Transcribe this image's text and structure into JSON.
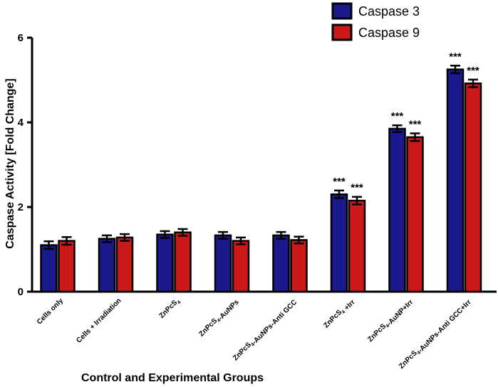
{
  "chart_data": {
    "type": "bar",
    "title": "",
    "xlabel": "Control and Experimental Groups",
    "ylabel": "Caspase Activity [Fold Change]",
    "ylim": [
      0,
      6
    ],
    "yticks": [
      "0",
      "2",
      "4",
      "6"
    ],
    "categories": [
      {
        "parts": [
          {
            "t": "Cells only",
            "sub": false
          }
        ]
      },
      {
        "parts": [
          {
            "t": "Cells + Irradiation",
            "sub": false
          }
        ]
      },
      {
        "parts": [
          {
            "t": "ZnPcS",
            "sub": false
          },
          {
            "t": "4",
            "sub": true
          }
        ]
      },
      {
        "parts": [
          {
            "t": "ZnPcS",
            "sub": false
          },
          {
            "t": "4",
            "sub": true
          },
          {
            "t": "-AuNPs",
            "sub": false
          }
        ]
      },
      {
        "parts": [
          {
            "t": "ZnPcS",
            "sub": false
          },
          {
            "t": "4",
            "sub": true
          },
          {
            "t": "-AuNPs-Anti GCC",
            "sub": false
          }
        ]
      },
      {
        "parts": [
          {
            "t": "ZnPcS",
            "sub": false
          },
          {
            "t": "4",
            "sub": true
          },
          {
            "t": " +Irr",
            "sub": false
          }
        ]
      },
      {
        "parts": [
          {
            "t": "ZnPcS",
            "sub": false
          },
          {
            "t": "4",
            "sub": true
          },
          {
            "t": "-AuNP+Irr",
            "sub": false
          }
        ]
      },
      {
        "parts": [
          {
            "t": "ZnPcS",
            "sub": false
          },
          {
            "t": "4",
            "sub": true
          },
          {
            "t": "-AuNPs-Anti GCC+Irr",
            "sub": false
          }
        ]
      }
    ],
    "series": [
      {
        "name": "Caspase 3",
        "color": "#1a1a8c",
        "values": [
          1.1,
          1.25,
          1.35,
          1.33,
          1.33,
          2.3,
          3.85,
          5.25
        ],
        "errors": [
          0.09,
          0.08,
          0.08,
          0.08,
          0.08,
          0.09,
          0.08,
          0.09
        ],
        "significance": [
          "",
          "",
          "",
          "",
          "",
          "***",
          "***",
          "***"
        ]
      },
      {
        "name": "Caspase 9",
        "color": "#cc1a1a",
        "values": [
          1.2,
          1.28,
          1.4,
          1.2,
          1.22,
          2.15,
          3.65,
          4.92
        ],
        "errors": [
          0.09,
          0.08,
          0.08,
          0.08,
          0.08,
          0.09,
          0.09,
          0.09
        ],
        "significance": [
          "",
          "",
          "",
          "",
          "",
          "***",
          "***",
          "***"
        ]
      }
    ],
    "legend": "top-right"
  }
}
